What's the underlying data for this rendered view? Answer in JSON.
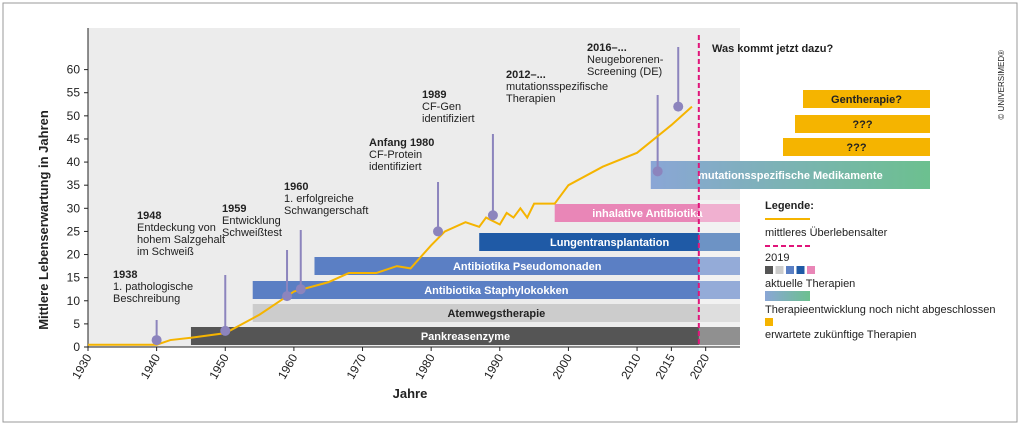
{
  "chart_data": {
    "type": "line",
    "ylabel": "Mittlere Lebenserwartung in Jahren",
    "xlabel": "Jahre",
    "xlim": [
      1930,
      2025
    ],
    "xticks": [
      1930,
      1940,
      1950,
      1960,
      1970,
      1980,
      1990,
      2000,
      2010,
      2015,
      2020
    ],
    "ylim": [
      0,
      69
    ],
    "yticks": [
      0,
      5,
      10,
      15,
      20,
      25,
      30,
      35,
      40,
      45,
      50,
      55,
      60
    ],
    "series": [
      {
        "name": "mittleres Überlebensalter",
        "color": "#f5b400",
        "x": [
          1930,
          1938,
          1940,
          1942,
          1945,
          1950,
          1955,
          1958,
          1960,
          1965,
          1968,
          1972,
          1975,
          1977,
          1980,
          1982,
          1985,
          1987,
          1988,
          1990,
          1991,
          1992,
          1993,
          1994,
          1995,
          1998,
          2000,
          2005,
          2010,
          2015,
          2018
        ],
        "values": [
          0.5,
          0.5,
          0.5,
          1.5,
          2,
          3,
          7,
          10,
          12,
          14,
          16,
          16,
          17.5,
          17,
          22,
          25,
          27,
          26,
          28,
          26.5,
          29,
          28,
          30,
          28,
          31,
          31,
          35,
          39,
          42,
          48,
          52
        ]
      }
    ],
    "events": [
      {
        "x": 1940,
        "value": 1.5,
        "text": [
          "1938",
          "1. pathologische",
          "Beschreibung"
        ]
      },
      {
        "x": 1950,
        "value": 3.5,
        "text": [
          "1948",
          "Entdeckung von",
          "hohem Salzgehalt",
          "im Schweiß"
        ]
      },
      {
        "x": 1959,
        "value": 11,
        "text": [
          "1959",
          "Entwicklung",
          "Schweißtest"
        ]
      },
      {
        "x": 1961,
        "value": 12.5,
        "text": [
          "1960",
          "1. erfolgreiche",
          "Schwangerschaft"
        ]
      },
      {
        "x": 1981,
        "value": 25,
        "text": [
          "Anfang 1980",
          "CF-Protein",
          "identifiziert"
        ]
      },
      {
        "x": 1989,
        "value": 28.5,
        "text": [
          "1989",
          "CF-Gen",
          "identifiziert"
        ]
      },
      {
        "x": 2013,
        "value": 38,
        "text": [
          "2012–...",
          "mutationsspezifische",
          "Therapien"
        ]
      },
      {
        "x": 2016,
        "value": 52,
        "text": [
          "2016–...",
          "Neugeborenen-",
          "Screening (DE)"
        ]
      }
    ],
    "event_color": "#8c84bd",
    "therapies": [
      {
        "label": "Pankreasenzyme",
        "start": 1945,
        "color": "#555555",
        "text_color": "#ffffff"
      },
      {
        "label": "Atemwegstherapie",
        "start": 1954,
        "color": "#cccccc",
        "text_color": "#222222"
      },
      {
        "label": "Antibiotika Staphylokokken",
        "start": 1954,
        "color": "#5b7fc4",
        "text_color": "#ffffff"
      },
      {
        "label": "Antibiotika Pseudomonaden",
        "start": 1963,
        "color": "#5b7fc4",
        "text_color": "#ffffff"
      },
      {
        "label": "Lungentransplantation",
        "start": 1987,
        "color": "#1f5aa6",
        "text_color": "#ffffff"
      },
      {
        "label": "inhalative Antibiotika",
        "start": 1998,
        "color": "#e986b7",
        "text_color": "#ffffff"
      }
    ],
    "developing": {
      "label": "mutationsspezifische Medikamente",
      "start": 2012,
      "colors": [
        "#8aa6d6",
        "#6cc08f"
      ]
    },
    "future_heading": "Was kommt jetzt dazu?",
    "future": [
      {
        "label": "Gentherapie?"
      },
      {
        "label": "???"
      },
      {
        "label": "???"
      }
    ],
    "future_color": "#f5b400",
    "present_line": {
      "x": 2019,
      "color": "#e0157a"
    },
    "legend": {
      "title": "Legende:",
      "current": "aktuelle Therapien",
      "developing": "Therapieentwicklung noch nicht abgeschlossen",
      "future": "erwartete zukünftige Therapien"
    },
    "copyright": "© UNIVERSIMED®"
  }
}
